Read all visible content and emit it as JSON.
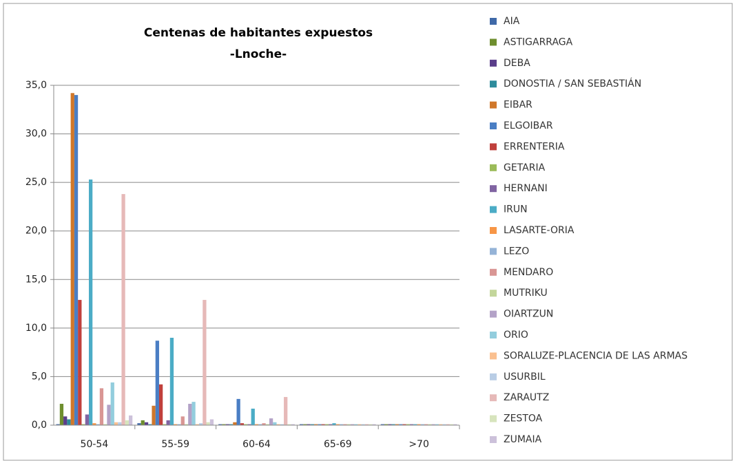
{
  "chart_data": {
    "type": "bar",
    "title": "Centenas de habitantes expuestos",
    "subtitle": "-Lnoche-",
    "categories": [
      "50-54",
      "55-59",
      "60-64",
      "65-69",
      ">70"
    ],
    "ylim": [
      0,
      35
    ],
    "yticks": [
      {
        "value": 0,
        "label": "0,0"
      },
      {
        "value": 5,
        "label": "5,0"
      },
      {
        "value": 10,
        "label": "10,0"
      },
      {
        "value": 15,
        "label": "15,0"
      },
      {
        "value": 20,
        "label": "20,0"
      },
      {
        "value": 25,
        "label": "25,0"
      },
      {
        "value": 30,
        "label": "30,0"
      },
      {
        "value": 35,
        "label": "35,0"
      }
    ],
    "grid": true,
    "legend": "right",
    "series": [
      {
        "name": "AIA",
        "color": "#3f69a8",
        "values": [
          0.1,
          0.2,
          0.1,
          0.1,
          0.1
        ]
      },
      {
        "name": "ASTIGARRAGA",
        "color": "#6e8e2e",
        "values": [
          2.2,
          0.5,
          0.1,
          0.1,
          0.1
        ]
      },
      {
        "name": "DEBA",
        "color": "#5a3e8a",
        "values": [
          0.9,
          0.3,
          0.1,
          0.1,
          0.1
        ]
      },
      {
        "name": "DONOSTIA / SAN SEBASTIÁN",
        "color": "#2e8c9c",
        "values": [
          0.6,
          0.1,
          0.1,
          0.1,
          0.1
        ]
      },
      {
        "name": "EIBAR",
        "color": "#d0772a",
        "values": [
          34.2,
          2.0,
          0.3,
          0.1,
          0.1
        ]
      },
      {
        "name": "ELGOIBAR",
        "color": "#4a7ec4",
        "values": [
          34.0,
          8.7,
          2.7,
          0.1,
          0.1
        ]
      },
      {
        "name": "ERRENTERIA",
        "color": "#c0403c",
        "values": [
          12.9,
          4.2,
          0.2,
          0.1,
          0.1
        ]
      },
      {
        "name": "GETARIA",
        "color": "#9bbb59",
        "values": [
          0.1,
          0.1,
          0.1,
          0.1,
          0.1
        ]
      },
      {
        "name": "HERNANI",
        "color": "#8064a2",
        "values": [
          1.1,
          0.5,
          0.1,
          0.1,
          0.1
        ]
      },
      {
        "name": "IRUN",
        "color": "#4bacc6",
        "values": [
          25.3,
          9.0,
          1.7,
          0.2,
          0.1
        ]
      },
      {
        "name": "LASARTE-ORIA",
        "color": "#f79646",
        "values": [
          0.2,
          0.1,
          0.1,
          0.1,
          0.1
        ]
      },
      {
        "name": "LEZO",
        "color": "#95b3d7",
        "values": [
          0.1,
          0.1,
          0.1,
          0.1,
          0.1
        ]
      },
      {
        "name": "MENDARO",
        "color": "#d99694",
        "values": [
          3.8,
          0.9,
          0.2,
          0.1,
          0.1
        ]
      },
      {
        "name": "MUTRIKU",
        "color": "#c3d69b",
        "values": [
          0.1,
          0.1,
          0.1,
          0.1,
          0.1
        ]
      },
      {
        "name": "OIARTZUN",
        "color": "#b3a2c7",
        "values": [
          2.1,
          2.2,
          0.7,
          0.1,
          0.1
        ]
      },
      {
        "name": "ORIO",
        "color": "#93cddd",
        "values": [
          4.4,
          2.4,
          0.3,
          0.1,
          0.1
        ]
      },
      {
        "name": "SORALUZE-PLACENCIA DE LAS ARMAS",
        "color": "#fac090",
        "values": [
          0.3,
          0.1,
          0.1,
          0.1,
          0.1
        ]
      },
      {
        "name": "USURBIL",
        "color": "#b9cde5",
        "values": [
          0.3,
          0.2,
          0.1,
          0.1,
          0.1
        ]
      },
      {
        "name": "ZARAUTZ",
        "color": "#e6b9b8",
        "values": [
          23.8,
          12.9,
          2.9,
          0.1,
          0.1
        ]
      },
      {
        "name": "ZESTOA",
        "color": "#d7e4bd",
        "values": [
          0.5,
          0.3,
          0.1,
          0.1,
          0.1
        ]
      },
      {
        "name": "ZUMAIA",
        "color": "#ccc1da",
        "values": [
          1.0,
          0.6,
          0.1,
          0.1,
          0.1
        ]
      }
    ]
  }
}
